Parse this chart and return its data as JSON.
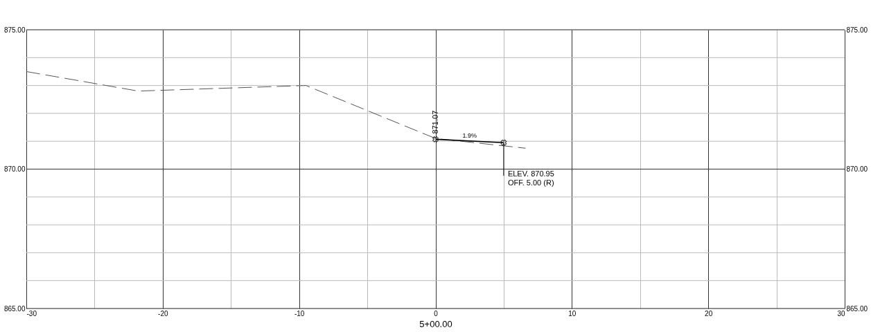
{
  "chart_data": {
    "type": "line",
    "xlabel": "5+00.00",
    "series": [
      {
        "color": "#555555",
        "line_style": "dashed",
        "marker": "none",
        "x": [
          -30,
          -21.8,
          -9.5,
          0,
          6.6
        ],
        "values": [
          873.5,
          872.8,
          873.0,
          871.1,
          870.75
        ]
      },
      {
        "color": "#000000",
        "line_style": "solid",
        "marker": "cross",
        "x": [
          0,
          5
        ],
        "values": [
          871.07,
          870.95
        ]
      }
    ],
    "xlim": [
      -30,
      30
    ],
    "xticks": [
      -30,
      {
        "value": -25,
        "label": null
      },
      -20,
      {
        "value": -15,
        "label": null
      },
      -10,
      {
        "value": -5,
        "label": null
      },
      0,
      {
        "value": 5,
        "label": null
      },
      10,
      {
        "value": 15,
        "label": null
      },
      20,
      {
        "value": 25,
        "label": null
      },
      30
    ],
    "ylim": [
      865,
      875
    ],
    "yticks": [
      {
        "value": 865,
        "label": "865.00"
      },
      {
        "value": 866,
        "label": null
      },
      {
        "value": 867,
        "label": null
      },
      {
        "value": 868,
        "label": null
      },
      {
        "value": 869,
        "label": null
      },
      {
        "value": 870,
        "label": "870.00"
      },
      {
        "value": 871,
        "label": null
      },
      {
        "value": 872,
        "label": null
      },
      {
        "value": 873,
        "label": null
      },
      {
        "value": 874,
        "label": null
      },
      {
        "value": 875,
        "label": "875.00"
      }
    ],
    "y2lim": [
      865,
      875
    ],
    "y2ticks": [
      {
        "value": 865,
        "label": "865.00"
      },
      {
        "value": 866,
        "label": null
      },
      {
        "value": 867,
        "label": null
      },
      {
        "value": 868,
        "label": null
      },
      {
        "value": 869,
        "label": null
      },
      {
        "value": 870,
        "label": "870.00"
      },
      {
        "value": 871,
        "label": null
      },
      {
        "value": 872,
        "label": null
      },
      {
        "value": 873,
        "label": null
      },
      {
        "value": 874,
        "label": null
      },
      {
        "value": 875,
        "label": "875.00"
      }
    ],
    "grid": true,
    "annotations": [
      {
        "text": "871.07",
        "x": 0,
        "y": 871.07
      },
      {
        "text": "1.9%",
        "x": 2.5,
        "y": 871.01
      },
      {
        "text": "ELEV. 870.95\nOFF. 5.00 (R)",
        "x": 5,
        "y": 870.95
      }
    ]
  }
}
